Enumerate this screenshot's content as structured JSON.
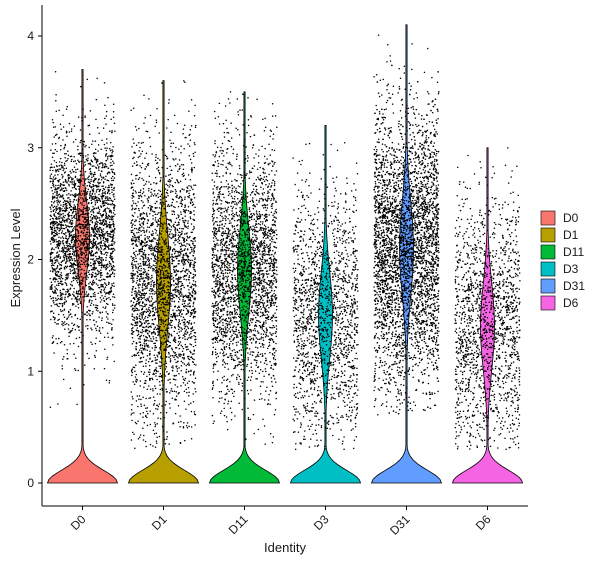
{
  "chart_data": {
    "type": "violin",
    "xlabel": "Identity",
    "ylabel": "Expression Level",
    "ylim": [
      -0.2,
      4.2
    ],
    "y_ticks": [
      0,
      1,
      2,
      3,
      4
    ],
    "legend_position": "right",
    "grid": false,
    "jitter_points": true,
    "categories": [
      {
        "name": "D0",
        "color": "#F8766D",
        "max": 3.7,
        "upper_mode": 2.2,
        "upper_spread": 0.45,
        "points_min": 0.4,
        "points_max": 3.7,
        "density": "high"
      },
      {
        "name": "D1",
        "color": "#B79F00",
        "max": 3.6,
        "upper_mode": 1.8,
        "upper_spread": 0.6,
        "points_min": 0.3,
        "points_max": 3.6,
        "density": "high"
      },
      {
        "name": "D11",
        "color": "#00BA38",
        "max": 3.5,
        "upper_mode": 1.9,
        "upper_spread": 0.55,
        "points_min": 0.3,
        "points_max": 3.5,
        "density": "high"
      },
      {
        "name": "D3",
        "color": "#00BFC4",
        "max": 3.2,
        "upper_mode": 1.5,
        "upper_spread": 0.55,
        "points_min": 0.3,
        "points_max": 3.2,
        "density": "medium"
      },
      {
        "name": "D31",
        "color": "#619CFF",
        "max": 4.1,
        "upper_mode": 2.1,
        "upper_spread": 0.6,
        "points_min": 0.6,
        "points_max": 4.1,
        "density": "very high"
      },
      {
        "name": "D6",
        "color": "#F564E3",
        "max": 3.0,
        "upper_mode": 1.4,
        "upper_spread": 0.55,
        "points_min": 0.3,
        "points_max": 3.0,
        "density": "medium"
      }
    ]
  }
}
